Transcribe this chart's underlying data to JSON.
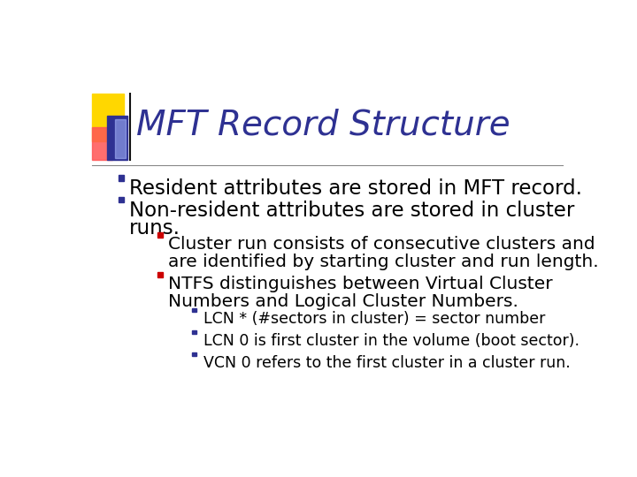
{
  "title": "MFT Record Structure",
  "title_color": "#2E3192",
  "title_fontsize": 28,
  "bg_color": "#FFFFFF",
  "line_color": "#888888",
  "logo_yellow": "#FFD700",
  "logo_red": "#FF5555",
  "logo_blue": "#2E3192",
  "logo_lightblue": "#AABBFF",
  "content": [
    {
      "level": 1,
      "bullet_color": "#2E3192",
      "lines": [
        "Resident attributes are stored in MFT record."
      ]
    },
    {
      "level": 1,
      "bullet_color": "#2E3192",
      "lines": [
        "Non-resident attributes are stored in cluster",
        "runs."
      ]
    },
    {
      "level": 2,
      "bullet_color": "#CC0000",
      "lines": [
        "Cluster run consists of consecutive clusters and",
        "are identified by starting cluster and run length."
      ]
    },
    {
      "level": 2,
      "bullet_color": "#CC0000",
      "lines": [
        "NTFS distinguishes between Virtual Cluster",
        "Numbers and Logical Cluster Numbers."
      ]
    },
    {
      "level": 3,
      "bullet_color": "#2E3192",
      "lines": [
        "LCN * (#sectors in cluster) = sector number"
      ]
    },
    {
      "level": 3,
      "bullet_color": "#2E3192",
      "lines": [
        "LCN 0 is first cluster in the volume (boot sector)."
      ]
    },
    {
      "level": 3,
      "bullet_color": "#2E3192",
      "lines": [
        "VCN 0 refers to the first cluster in a cluster run."
      ]
    }
  ],
  "indent_l1": 0.1,
  "indent_l2": 0.18,
  "indent_l3": 0.25,
  "fs_l1": 16.5,
  "fs_l2": 14.5,
  "fs_l3": 12.5
}
